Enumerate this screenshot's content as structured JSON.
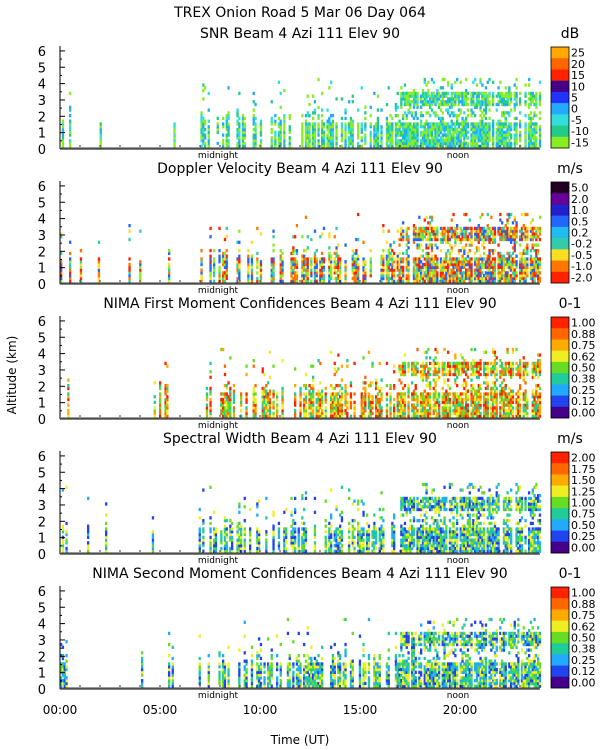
{
  "figure": {
    "title_line1": "TREX Onion Road   5 Mar 06 Day 064",
    "ylabel": "Altitude (km)",
    "xlabel": "Time (UT)",
    "xticks": [
      "00:00",
      "05:00",
      "10:00",
      "15:00",
      "20:00"
    ],
    "yticks": [
      "0",
      "1",
      "2",
      "3",
      "4",
      "5",
      "6"
    ],
    "day_markers": [
      "midnight",
      "noon"
    ]
  },
  "chart_data": [
    {
      "type": "heatmap",
      "title": "SNR Beam 4 Azi 111 Elev 90",
      "unit": "dB",
      "xlim": [
        0,
        24
      ],
      "ylim": [
        0,
        6.3
      ],
      "colorbar_labels": [
        "25",
        "20",
        "15",
        "10",
        "5",
        "0",
        "-5",
        "-10",
        "-15"
      ],
      "colorbar_colors": [
        "#ffaa00",
        "#ff6600",
        "#ff2200",
        "#440088",
        "#2233ff",
        "#22aaff",
        "#33dddd",
        "#22cc88",
        "#88ee22"
      ],
      "data_colors": [
        "#88ee22",
        "#88ee22",
        "#22cc88",
        "#22aaff",
        "#33dddd"
      ],
      "signal": "snr"
    },
    {
      "type": "heatmap",
      "title": "Doppler Velocity Beam 4 Azi 111 Elev 90",
      "unit": "m/s",
      "xlim": [
        0,
        24
      ],
      "ylim": [
        0,
        6.3
      ],
      "colorbar_labels": [
        "5.0",
        "2.0",
        "1.0",
        "0.5",
        "0.2",
        "-0.2",
        "-0.5",
        "-1.0",
        "-2.0"
      ],
      "colorbar_colors": [
        "#220022",
        "#660099",
        "#2222cc",
        "#2266ff",
        "#22bbee",
        "#33ccaa",
        "#ffdd22",
        "#ff7700",
        "#ff2200"
      ],
      "data_colors": [
        "#ffdd22",
        "#ff7700",
        "#ff2200",
        "#33ccaa",
        "#88ee22",
        "#2266ff"
      ],
      "signal": "doppler"
    },
    {
      "type": "heatmap",
      "title": "NIMA First Moment Confidences Beam 4 Azi 111 Elev 90",
      "unit": "0-1",
      "xlim": [
        0,
        24
      ],
      "ylim": [
        0,
        6.3
      ],
      "colorbar_labels": [
        "1.00",
        "0.88",
        "0.75",
        "0.62",
        "0.50",
        "0.38",
        "0.25",
        "0.12",
        "0.00"
      ],
      "colorbar_colors": [
        "#ff2200",
        "#ff6600",
        "#ffaa00",
        "#eeee22",
        "#66dd22",
        "#22cc99",
        "#22aaff",
        "#2244ee",
        "#440088"
      ],
      "data_colors": [
        "#ff6600",
        "#ffaa00",
        "#eeee22",
        "#66dd22",
        "#22cc99",
        "#ff2200"
      ],
      "signal": "conf1"
    },
    {
      "type": "heatmap",
      "title": "Spectral Width Beam 4 Azi 111 Elev 90",
      "unit": "m/s",
      "xlim": [
        0,
        24
      ],
      "ylim": [
        0,
        6.3
      ],
      "colorbar_labels": [
        "2.00",
        "1.75",
        "1.50",
        "1.25",
        "1.00",
        "0.75",
        "0.50",
        "0.25",
        "0.00"
      ],
      "colorbar_colors": [
        "#ff2200",
        "#ff6600",
        "#ffaa00",
        "#eeee22",
        "#66dd22",
        "#22cc99",
        "#22aaff",
        "#2244ee",
        "#440088"
      ],
      "data_colors": [
        "#22aaff",
        "#2244ee",
        "#22cc99",
        "#66dd22",
        "#eeee22"
      ],
      "signal": "width"
    },
    {
      "type": "heatmap",
      "title": "NIMA Second Moment Confidences Beam 4 Azi 111 Elev 90",
      "unit": "0-1",
      "xlim": [
        0,
        24
      ],
      "ylim": [
        0,
        6.3
      ],
      "colorbar_labels": [
        "1.00",
        "0.88",
        "0.75",
        "0.62",
        "0.50",
        "0.38",
        "0.25",
        "0.12",
        "0.00"
      ],
      "colorbar_colors": [
        "#ff2200",
        "#ff6600",
        "#ffaa00",
        "#eeee22",
        "#66dd22",
        "#22cc99",
        "#22aaff",
        "#2244ee",
        "#440088"
      ],
      "data_colors": [
        "#66dd22",
        "#22cc99",
        "#22aaff",
        "#2244ee",
        "#eeee22"
      ],
      "signal": "conf2"
    }
  ]
}
